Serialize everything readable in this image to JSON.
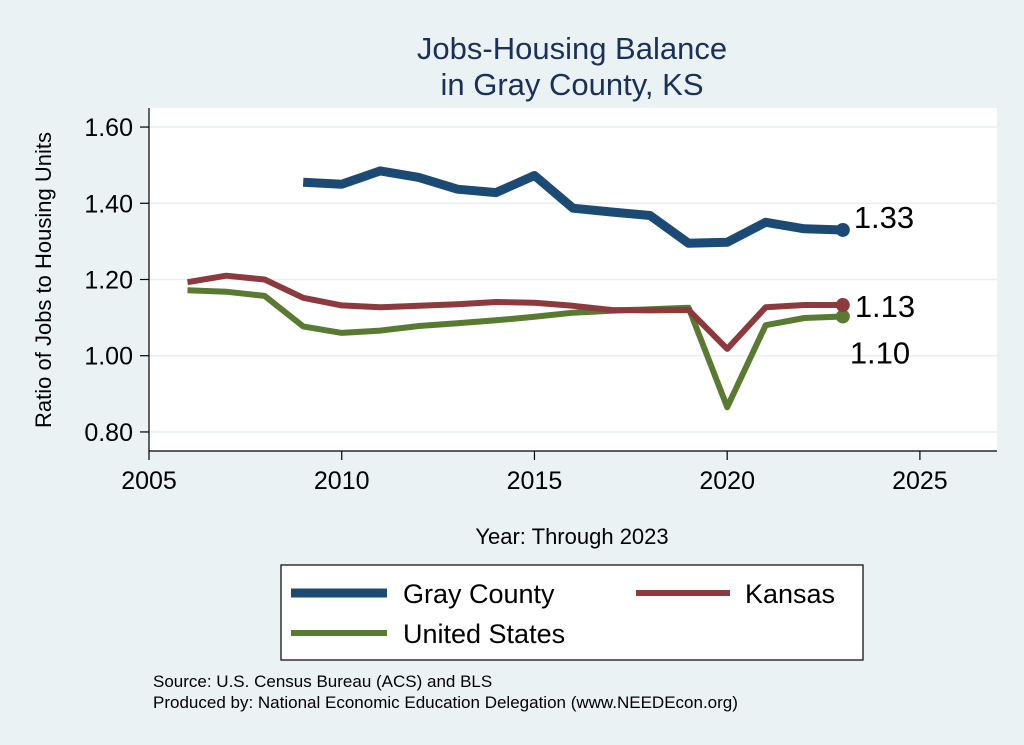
{
  "chart_data": {
    "type": "line",
    "title": [
      "Jobs-Housing Balance",
      "in Gray County, KS"
    ],
    "xlabel": "Year: Through 2023",
    "ylabel": "Ratio of Jobs to Housing Units",
    "xlim": [
      2005,
      2027
    ],
    "ylim": [
      0.75,
      1.65
    ],
    "xticks": [
      2005,
      2010,
      2015,
      2020,
      2025
    ],
    "xtick_labels": [
      "2005",
      "2010",
      "2015",
      "2020",
      "2025"
    ],
    "yticks": [
      0.8,
      1.0,
      1.2,
      1.4,
      1.6
    ],
    "ytick_labels": [
      "0.80",
      "1.00",
      "1.20",
      "1.40",
      "1.60"
    ],
    "grid": true,
    "series": [
      {
        "name": "Gray County",
        "color": "#1b4a74",
        "x": [
          2009,
          2010,
          2011,
          2012,
          2013,
          2014,
          2015,
          2016,
          2017,
          2018,
          2019,
          2020,
          2021,
          2022,
          2023
        ],
        "values": [
          1.455,
          1.45,
          1.485,
          1.468,
          1.437,
          1.428,
          1.473,
          1.387,
          1.377,
          1.368,
          1.295,
          1.298,
          1.35,
          1.333,
          1.33
        ],
        "end_label": "1.33"
      },
      {
        "name": "Kansas",
        "color": "#8c3a3e",
        "x": [
          2006,
          2007,
          2008,
          2009,
          2010,
          2011,
          2012,
          2013,
          2014,
          2015,
          2016,
          2017,
          2018,
          2019,
          2020,
          2021,
          2022,
          2023
        ],
        "values": [
          1.193,
          1.21,
          1.2,
          1.152,
          1.132,
          1.127,
          1.131,
          1.135,
          1.141,
          1.139,
          1.131,
          1.12,
          1.119,
          1.12,
          1.018,
          1.127,
          1.133,
          1.133
        ],
        "end_label": "1.13"
      },
      {
        "name": "United States",
        "color": "#597b31",
        "x": [
          2006,
          2007,
          2008,
          2009,
          2010,
          2011,
          2012,
          2013,
          2014,
          2015,
          2016,
          2017,
          2018,
          2019,
          2020,
          2021,
          2022,
          2023
        ],
        "values": [
          1.172,
          1.168,
          1.157,
          1.077,
          1.06,
          1.066,
          1.078,
          1.085,
          1.093,
          1.102,
          1.113,
          1.118,
          1.122,
          1.126,
          0.865,
          1.08,
          1.099,
          1.103
        ],
        "end_label": "1.10"
      }
    ],
    "legend": {
      "placement": "bottom",
      "entries": [
        "Gray County",
        "Kansas",
        "United States"
      ]
    },
    "source_lines": [
      "Source: U.S. Census Bureau (ACS) and BLS",
      "Produced by: National Economic Education Delegation (www.NEEDEcon.org)"
    ]
  }
}
